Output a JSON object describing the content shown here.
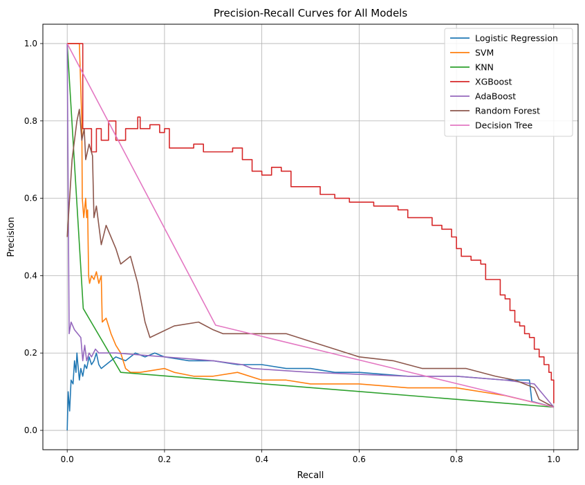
{
  "chart_data": {
    "type": "line",
    "title": "Precision-Recall Curves for All Models",
    "xlabel": "Recall",
    "ylabel": "Precision",
    "xlim": [
      -0.05,
      1.05
    ],
    "ylim": [
      -0.05,
      1.05
    ],
    "xticks": [
      0.0,
      0.2,
      0.4,
      0.6,
      0.8,
      1.0
    ],
    "xtick_labels": [
      "0.0",
      "0.2",
      "0.4",
      "0.6",
      "0.8",
      "1.0"
    ],
    "yticks": [
      0.0,
      0.2,
      0.4,
      0.6,
      0.8,
      1.0
    ],
    "ytick_labels": [
      "0.0",
      "0.2",
      "0.4",
      "0.6",
      "0.8",
      "1.0"
    ],
    "grid": true,
    "legend_position": "top-right",
    "series": [
      {
        "name": "Logistic Regression",
        "color": "#1f77b4",
        "step": false,
        "points": [
          [
            0.0,
            0.0
          ],
          [
            0.002,
            0.1
          ],
          [
            0.005,
            0.05
          ],
          [
            0.008,
            0.13
          ],
          [
            0.012,
            0.12
          ],
          [
            0.015,
            0.18
          ],
          [
            0.018,
            0.15
          ],
          [
            0.02,
            0.2
          ],
          [
            0.022,
            0.17
          ],
          [
            0.025,
            0.13
          ],
          [
            0.028,
            0.16
          ],
          [
            0.032,
            0.14
          ],
          [
            0.036,
            0.17
          ],
          [
            0.04,
            0.16
          ],
          [
            0.045,
            0.19
          ],
          [
            0.05,
            0.17
          ],
          [
            0.055,
            0.18
          ],
          [
            0.06,
            0.2
          ],
          [
            0.065,
            0.17
          ],
          [
            0.07,
            0.16
          ],
          [
            0.08,
            0.17
          ],
          [
            0.09,
            0.18
          ],
          [
            0.1,
            0.19
          ],
          [
            0.12,
            0.18
          ],
          [
            0.14,
            0.2
          ],
          [
            0.16,
            0.19
          ],
          [
            0.18,
            0.2
          ],
          [
            0.2,
            0.19
          ],
          [
            0.25,
            0.18
          ],
          [
            0.3,
            0.18
          ],
          [
            0.35,
            0.17
          ],
          [
            0.4,
            0.17
          ],
          [
            0.45,
            0.16
          ],
          [
            0.5,
            0.16
          ],
          [
            0.55,
            0.15
          ],
          [
            0.6,
            0.15
          ],
          [
            0.7,
            0.14
          ],
          [
            0.8,
            0.14
          ],
          [
            0.9,
            0.13
          ],
          [
            0.95,
            0.13
          ],
          [
            0.955,
            0.075
          ],
          [
            1.0,
            0.06
          ]
        ]
      },
      {
        "name": "SVM",
        "color": "#ff7f0e",
        "step": false,
        "points": [
          [
            0.0,
            1.0
          ],
          [
            0.025,
            1.0
          ],
          [
            0.03,
            0.8
          ],
          [
            0.031,
            0.6
          ],
          [
            0.034,
            0.55
          ],
          [
            0.038,
            0.6
          ],
          [
            0.04,
            0.55
          ],
          [
            0.042,
            0.57
          ],
          [
            0.044,
            0.4
          ],
          [
            0.046,
            0.38
          ],
          [
            0.05,
            0.4
          ],
          [
            0.055,
            0.39
          ],
          [
            0.06,
            0.41
          ],
          [
            0.065,
            0.38
          ],
          [
            0.07,
            0.4
          ],
          [
            0.072,
            0.28
          ],
          [
            0.08,
            0.29
          ],
          [
            0.09,
            0.25
          ],
          [
            0.1,
            0.22
          ],
          [
            0.11,
            0.2
          ],
          [
            0.12,
            0.16
          ],
          [
            0.13,
            0.15
          ],
          [
            0.15,
            0.15
          ],
          [
            0.2,
            0.16
          ],
          [
            0.22,
            0.15
          ],
          [
            0.26,
            0.14
          ],
          [
            0.3,
            0.14
          ],
          [
            0.35,
            0.15
          ],
          [
            0.4,
            0.13
          ],
          [
            0.45,
            0.13
          ],
          [
            0.5,
            0.12
          ],
          [
            0.6,
            0.12
          ],
          [
            0.7,
            0.11
          ],
          [
            0.8,
            0.11
          ],
          [
            0.9,
            0.09
          ],
          [
            1.0,
            0.06
          ]
        ]
      },
      {
        "name": "KNN",
        "color": "#2ca02c",
        "step": false,
        "points": [
          [
            0.0,
            1.0
          ],
          [
            0.033,
            0.315
          ],
          [
            0.11,
            0.15
          ],
          [
            1.0,
            0.06
          ]
        ]
      },
      {
        "name": "XGBoost",
        "color": "#d62728",
        "step": true,
        "points": [
          [
            0.0,
            1.0
          ],
          [
            0.032,
            1.0
          ],
          [
            0.032,
            0.78
          ],
          [
            0.05,
            0.72
          ],
          [
            0.06,
            0.78
          ],
          [
            0.07,
            0.75
          ],
          [
            0.085,
            0.8
          ],
          [
            0.1,
            0.75
          ],
          [
            0.12,
            0.78
          ],
          [
            0.145,
            0.81
          ],
          [
            0.15,
            0.78
          ],
          [
            0.17,
            0.79
          ],
          [
            0.19,
            0.77
          ],
          [
            0.2,
            0.78
          ],
          [
            0.21,
            0.73
          ],
          [
            0.24,
            0.73
          ],
          [
            0.26,
            0.74
          ],
          [
            0.28,
            0.72
          ],
          [
            0.3,
            0.72
          ],
          [
            0.32,
            0.72
          ],
          [
            0.34,
            0.73
          ],
          [
            0.36,
            0.7
          ],
          [
            0.38,
            0.67
          ],
          [
            0.4,
            0.66
          ],
          [
            0.42,
            0.68
          ],
          [
            0.44,
            0.67
          ],
          [
            0.46,
            0.63
          ],
          [
            0.48,
            0.63
          ],
          [
            0.5,
            0.63
          ],
          [
            0.52,
            0.61
          ],
          [
            0.55,
            0.6
          ],
          [
            0.58,
            0.59
          ],
          [
            0.6,
            0.59
          ],
          [
            0.63,
            0.58
          ],
          [
            0.66,
            0.58
          ],
          [
            0.68,
            0.57
          ],
          [
            0.7,
            0.55
          ],
          [
            0.72,
            0.55
          ],
          [
            0.74,
            0.55
          ],
          [
            0.75,
            0.53
          ],
          [
            0.77,
            0.52
          ],
          [
            0.79,
            0.5
          ],
          [
            0.8,
            0.47
          ],
          [
            0.81,
            0.45
          ],
          [
            0.83,
            0.44
          ],
          [
            0.85,
            0.43
          ],
          [
            0.86,
            0.39
          ],
          [
            0.88,
            0.39
          ],
          [
            0.89,
            0.35
          ],
          [
            0.9,
            0.34
          ],
          [
            0.91,
            0.31
          ],
          [
            0.92,
            0.28
          ],
          [
            0.93,
            0.27
          ],
          [
            0.94,
            0.25
          ],
          [
            0.95,
            0.24
          ],
          [
            0.96,
            0.21
          ],
          [
            0.97,
            0.19
          ],
          [
            0.98,
            0.17
          ],
          [
            0.99,
            0.15
          ],
          [
            0.995,
            0.13
          ],
          [
            1.0,
            0.07
          ]
        ]
      },
      {
        "name": "AdaBoost",
        "color": "#9467bd",
        "step": false,
        "points": [
          [
            0.0,
            1.0
          ],
          [
            0.004,
            0.25
          ],
          [
            0.008,
            0.28
          ],
          [
            0.015,
            0.26
          ],
          [
            0.028,
            0.24
          ],
          [
            0.032,
            0.18
          ],
          [
            0.036,
            0.22
          ],
          [
            0.04,
            0.18
          ],
          [
            0.045,
            0.2
          ],
          [
            0.05,
            0.19
          ],
          [
            0.058,
            0.21
          ],
          [
            0.065,
            0.2
          ],
          [
            0.1,
            0.2
          ],
          [
            0.2,
            0.19
          ],
          [
            0.3,
            0.18
          ],
          [
            0.36,
            0.17
          ],
          [
            0.38,
            0.16
          ],
          [
            0.5,
            0.15
          ],
          [
            0.7,
            0.14
          ],
          [
            0.8,
            0.14
          ],
          [
            0.9,
            0.13
          ],
          [
            0.96,
            0.12
          ],
          [
            0.98,
            0.09
          ],
          [
            1.0,
            0.06
          ]
        ]
      },
      {
        "name": "Random Forest",
        "color": "#8c564b",
        "step": false,
        "points": [
          [
            0.0,
            0.5
          ],
          [
            0.005,
            0.6
          ],
          [
            0.01,
            0.7
          ],
          [
            0.015,
            0.75
          ],
          [
            0.02,
            0.8
          ],
          [
            0.025,
            0.83
          ],
          [
            0.03,
            0.75
          ],
          [
            0.035,
            0.78
          ],
          [
            0.038,
            0.7
          ],
          [
            0.045,
            0.74
          ],
          [
            0.052,
            0.71
          ],
          [
            0.055,
            0.55
          ],
          [
            0.06,
            0.58
          ],
          [
            0.07,
            0.48
          ],
          [
            0.08,
            0.53
          ],
          [
            0.1,
            0.47
          ],
          [
            0.11,
            0.43
          ],
          [
            0.13,
            0.45
          ],
          [
            0.145,
            0.38
          ],
          [
            0.16,
            0.28
          ],
          [
            0.17,
            0.24
          ],
          [
            0.22,
            0.27
          ],
          [
            0.27,
            0.28
          ],
          [
            0.3,
            0.26
          ],
          [
            0.32,
            0.25
          ],
          [
            0.45,
            0.25
          ],
          [
            0.5,
            0.23
          ],
          [
            0.55,
            0.21
          ],
          [
            0.6,
            0.19
          ],
          [
            0.67,
            0.18
          ],
          [
            0.73,
            0.16
          ],
          [
            0.82,
            0.16
          ],
          [
            0.88,
            0.14
          ],
          [
            0.92,
            0.13
          ],
          [
            0.96,
            0.11
          ],
          [
            0.97,
            0.08
          ],
          [
            1.0,
            0.06
          ]
        ]
      },
      {
        "name": "Decision Tree",
        "color": "#e377c2",
        "step": false,
        "points": [
          [
            0.0,
            1.0
          ],
          [
            0.305,
            0.272
          ],
          [
            1.0,
            0.06
          ]
        ]
      }
    ]
  }
}
